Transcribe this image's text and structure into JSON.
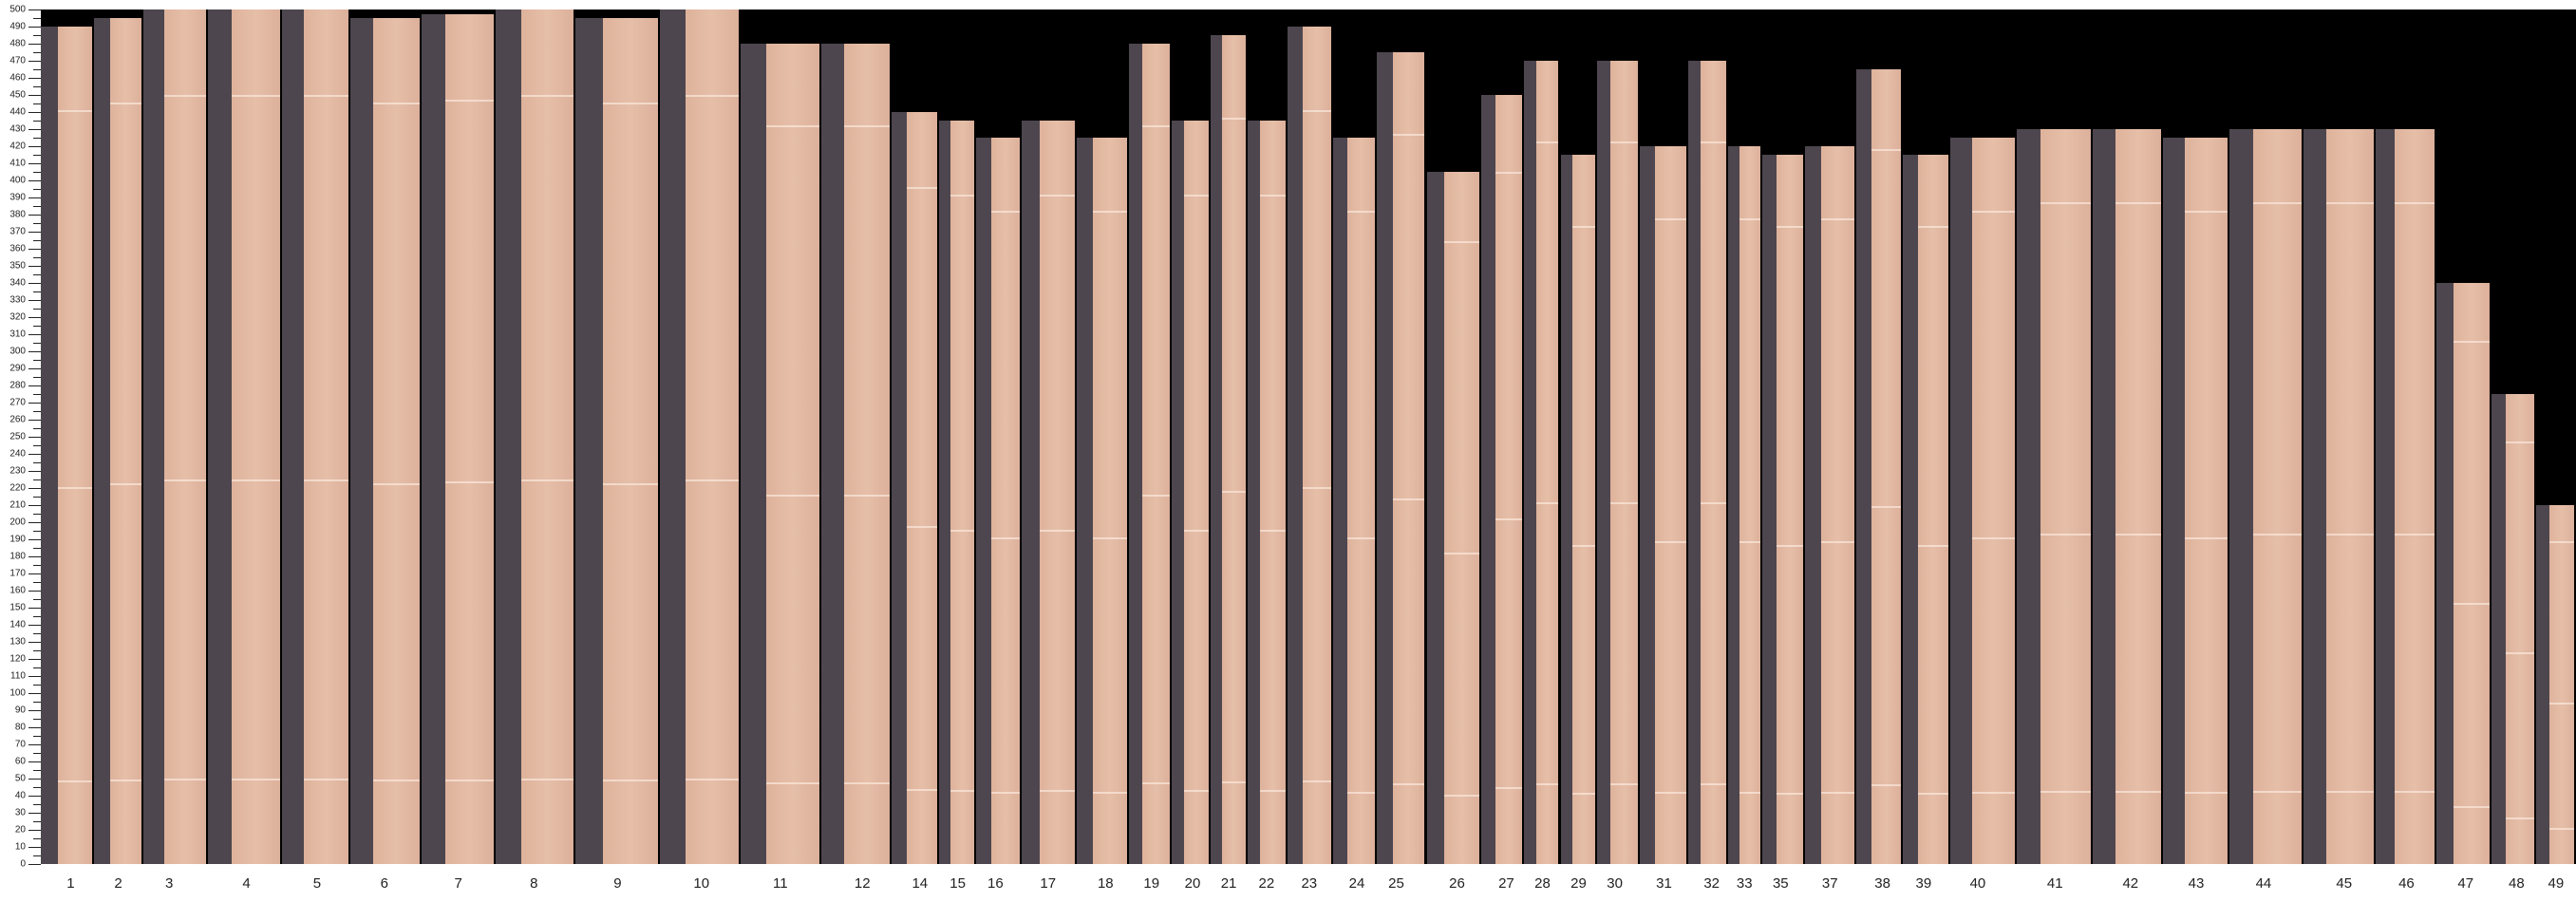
{
  "y_axis": {
    "min": 0,
    "max": 500,
    "tick_step": 10,
    "label_step": 10
  },
  "colors": {
    "background": "#000000",
    "board": "#e3b9a3",
    "shadow": "#4d464e"
  },
  "boards": [
    {
      "label": "1",
      "length": 490
    },
    {
      "label": "2",
      "length": 495
    },
    {
      "label": "3",
      "length": 500
    },
    {
      "label": "4",
      "length": 500
    },
    {
      "label": "5",
      "length": 500
    },
    {
      "label": "6",
      "length": 495
    },
    {
      "label": "7",
      "length": 497
    },
    {
      "label": "8",
      "length": 500
    },
    {
      "label": "9",
      "length": 495
    },
    {
      "label": "10",
      "length": 500
    },
    {
      "label": "11",
      "length": 480
    },
    {
      "label": "12",
      "length": 480
    },
    {
      "label": "14",
      "length": 440
    },
    {
      "label": "15",
      "length": 435
    },
    {
      "label": "16",
      "length": 425
    },
    {
      "label": "17",
      "length": 435
    },
    {
      "label": "18",
      "length": 425
    },
    {
      "label": "19",
      "length": 480
    },
    {
      "label": "20",
      "length": 435
    },
    {
      "label": "21",
      "length": 485
    },
    {
      "label": "22",
      "length": 435
    },
    {
      "label": "23",
      "length": 490
    },
    {
      "label": "24",
      "length": 425
    },
    {
      "label": "25",
      "length": 475
    },
    {
      "label": "26",
      "length": 405
    },
    {
      "label": "27",
      "length": 450
    },
    {
      "label": "28",
      "length": 470
    },
    {
      "label": "29",
      "length": 415
    },
    {
      "label": "30",
      "length": 470
    },
    {
      "label": "31",
      "length": 420
    },
    {
      "label": "32",
      "length": 470
    },
    {
      "label": "33",
      "length": 420
    },
    {
      "label": "35",
      "length": 415
    },
    {
      "label": "37",
      "length": 420
    },
    {
      "label": "38",
      "length": 465
    },
    {
      "label": "39",
      "length": 415
    },
    {
      "label": "40",
      "length": 425
    },
    {
      "label": "41",
      "length": 430
    },
    {
      "label": "42",
      "length": 430
    },
    {
      "label": "43",
      "length": 425
    },
    {
      "label": "44",
      "length": 430
    },
    {
      "label": "45",
      "length": 430
    },
    {
      "label": "46",
      "length": 430
    },
    {
      "label": "47",
      "length": 340
    },
    {
      "label": "48",
      "length": 275
    },
    {
      "label": "49",
      "length": 210
    }
  ]
}
